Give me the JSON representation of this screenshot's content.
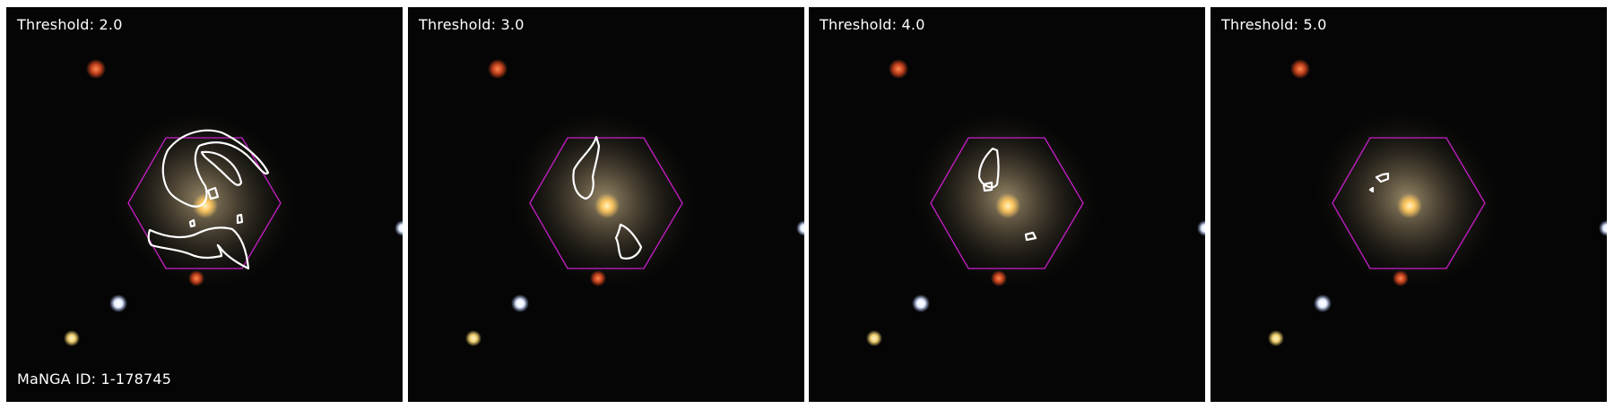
{
  "figure": {
    "manga_id_label": "MaNGA ID: 1-178745",
    "panels": [
      {
        "threshold_label": "Threshold: 2.0"
      },
      {
        "threshold_label": "Threshold: 3.0"
      },
      {
        "threshold_label": "Threshold: 4.0"
      },
      {
        "threshold_label": "Threshold: 5.0"
      }
    ]
  },
  "colors": {
    "background": "#050505",
    "hexagon": "#c81ec8",
    "contour": "#ffffff",
    "galaxy_core": "#ffd878",
    "galaxy_halo": "#8a7a5c"
  }
}
